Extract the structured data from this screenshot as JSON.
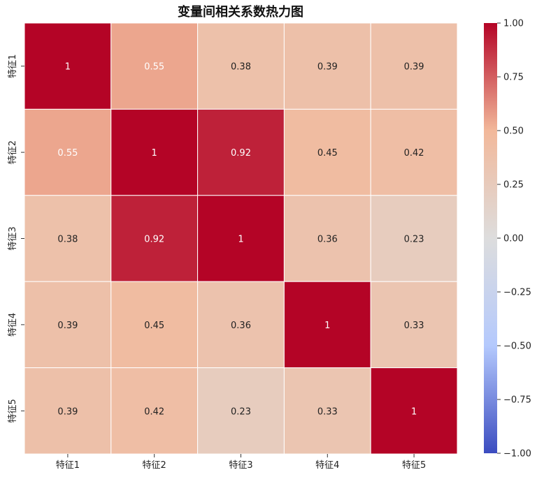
{
  "chart_data": {
    "type": "heatmap",
    "title": "变量间相关系数热力图",
    "x_labels": [
      "特征1",
      "特征2",
      "特征3",
      "特征4",
      "特征5"
    ],
    "y_labels": [
      "特征1",
      "特征2",
      "特征3",
      "特征4",
      "特征5"
    ],
    "values": [
      [
        1,
        0.55,
        0.38,
        0.39,
        0.39
      ],
      [
        0.55,
        1,
        0.92,
        0.45,
        0.42
      ],
      [
        0.38,
        0.92,
        1,
        0.36,
        0.23
      ],
      [
        0.39,
        0.45,
        0.36,
        1,
        0.33
      ],
      [
        0.39,
        0.42,
        0.23,
        0.33,
        1
      ]
    ],
    "cell_labels": [
      [
        "1",
        "0.55",
        "0.38",
        "0.39",
        "0.39"
      ],
      [
        "0.55",
        "1",
        "0.92",
        "0.45",
        "0.42"
      ],
      [
        "0.38",
        "0.92",
        "1",
        "0.36",
        "0.23"
      ],
      [
        "0.39",
        "0.45",
        "0.36",
        "1",
        "0.33"
      ],
      [
        "0.39",
        "0.42",
        "0.23",
        "0.33",
        "1"
      ]
    ],
    "vmin": -1,
    "vmax": 1,
    "colormap": "coolwarm",
    "colormap_stops": [
      "#3b4cc0",
      "#b4c9fd",
      "#dddddd",
      "#f2b89a",
      "#b40426"
    ],
    "colorbar_ticks": [
      "1.00",
      "0.75",
      "0.50",
      "0.25",
      "0.00",
      "−0.25",
      "−0.50",
      "−0.75",
      "−1.00"
    ],
    "colorbar_tick_values": [
      1,
      0.75,
      0.5,
      0.25,
      0,
      -0.25,
      -0.5,
      -0.75,
      -1
    ],
    "colorbar_placement": "right",
    "grid_line_color": "#ffffff"
  }
}
